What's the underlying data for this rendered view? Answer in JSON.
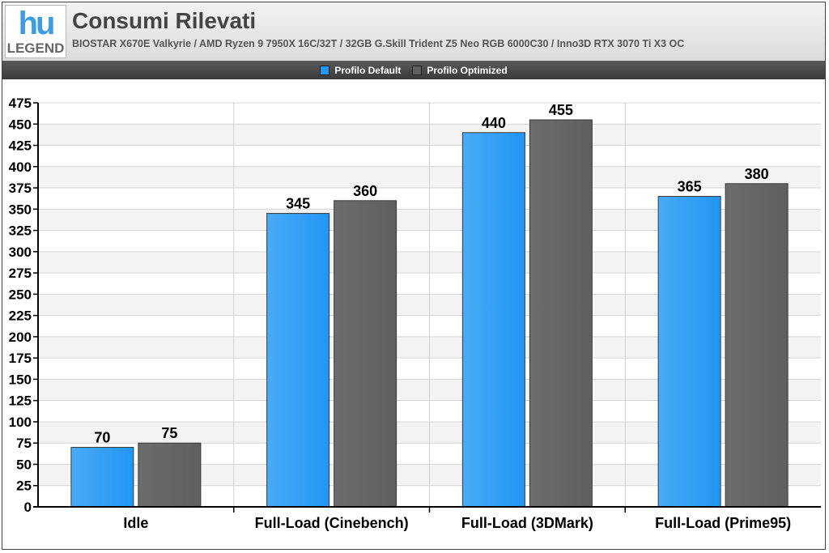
{
  "header": {
    "logo_top": "hu",
    "logo_bottom": "LEGEND",
    "title": "Consumi Rilevati",
    "subtitle": "BIOSTAR X670E Valkyrie / AMD Ryzen 9 7950X 16C/32T / 32GB G.Skill Trident Z5 Neo RGB 6000C30 / Inno3D RTX 3070 Ti X3 OC"
  },
  "colors": {
    "series_default": "#2196f3",
    "series_optimized": "#5f5f5f",
    "plot_band_a": "#f3f3f3",
    "plot_band_b": "#ffffff"
  },
  "chart_data": {
    "type": "bar",
    "title": "Consumi Rilevati",
    "xlabel": "",
    "ylabel": "",
    "ylim": [
      0,
      475
    ],
    "ytick_step": 25,
    "grid": true,
    "legend_position": "top-center",
    "categories": [
      "Idle",
      "Full-Load (Cinebench)",
      "Full-Load (3DMark)",
      "Full-Load (Prime95)"
    ],
    "series": [
      {
        "name": "Profilo Default",
        "values": [
          70,
          345,
          440,
          365
        ]
      },
      {
        "name": "Profilo Optimized",
        "values": [
          75,
          360,
          455,
          380
        ]
      }
    ]
  }
}
